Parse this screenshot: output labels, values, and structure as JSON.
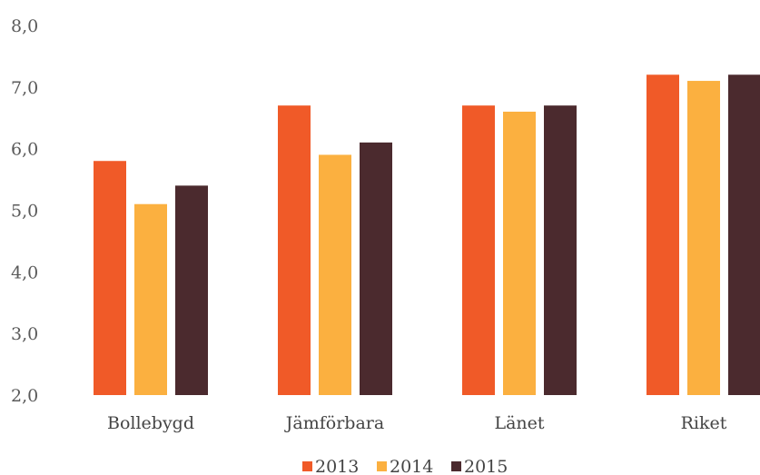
{
  "chart_data": {
    "type": "bar",
    "categories": [
      "Bollebygd",
      "Jämförbara",
      "Länet",
      "Riket"
    ],
    "series": [
      {
        "name": "2013",
        "color": "#f05a28",
        "values": [
          5.8,
          6.7,
          6.7,
          7.2
        ]
      },
      {
        "name": "2014",
        "color": "#fbb040",
        "values": [
          5.1,
          5.9,
          6.6,
          7.1
        ]
      },
      {
        "name": "2015",
        "color": "#4b2a2e",
        "values": [
          5.4,
          6.1,
          6.7,
          7.2
        ]
      }
    ],
    "yticks": [
      "2,0",
      "3,0",
      "4,0",
      "5,0",
      "6,0",
      "7,0",
      "8,0"
    ],
    "ylim": [
      2,
      8
    ],
    "grid": false,
    "legend_position": "bottom"
  }
}
